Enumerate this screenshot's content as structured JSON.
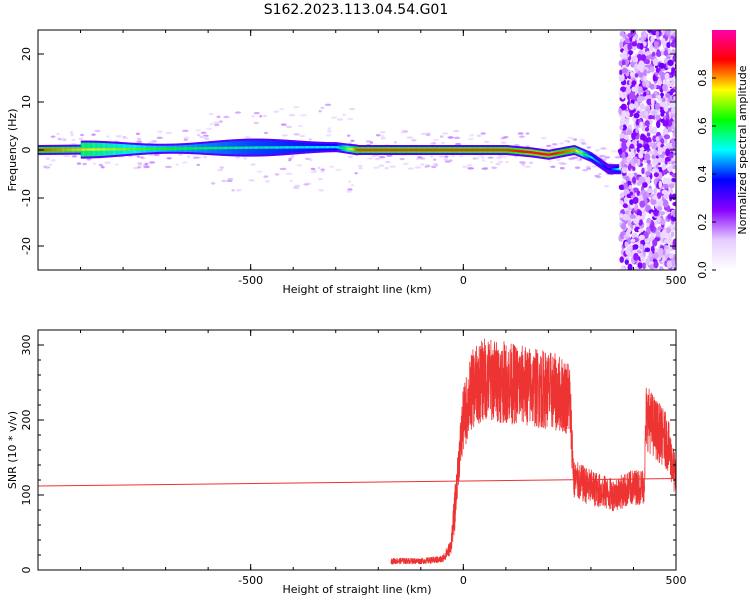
{
  "title": "S162.2023.113.04.54.G01",
  "chart_data": [
    {
      "type": "heatmap",
      "xlabel": "Height of straight line (km)",
      "ylabel": "Frequency (Hz)",
      "xlim": [
        -1000,
        500
      ],
      "ylim": [
        -25,
        25
      ],
      "xticks": [
        -500,
        0,
        500
      ],
      "yticks": [
        -20,
        -10,
        0,
        10,
        20
      ],
      "colorbar": {
        "label": "Normalized spectral amplitude",
        "range": [
          0,
          1
        ],
        "ticks": [
          "0.0",
          "0.2",
          "0.4",
          "0.6",
          "0.8"
        ],
        "colors": [
          "#ffffff",
          "#e6ccff",
          "#8800ff",
          "#0000ff",
          "#00ffff",
          "#00ff00",
          "#ffff00",
          "#ff0000",
          "#ff00aa"
        ]
      },
      "ridge": [
        {
          "x": -1000,
          "freq": 0.0,
          "amp": 0.85
        },
        {
          "x": -750,
          "freq": 0.2,
          "amp": 0.65
        },
        {
          "x": -500,
          "freq": 0.5,
          "amp": 0.55
        },
        {
          "x": -300,
          "freq": 0.6,
          "amp": 0.5
        },
        {
          "x": -250,
          "freq": 0.0,
          "amp": 0.85
        },
        {
          "x": 100,
          "freq": 0.0,
          "amp": 0.85
        },
        {
          "x": 160,
          "freq": -0.5,
          "amp": 0.9
        },
        {
          "x": 200,
          "freq": -1.0,
          "amp": 0.9
        },
        {
          "x": 260,
          "freq": 0.0,
          "amp": 0.8
        },
        {
          "x": 300,
          "freq": -1.5,
          "amp": 0.5
        },
        {
          "x": 340,
          "freq": -4.0,
          "amp": 0.35
        },
        {
          "x": 370,
          "freq": -4.0,
          "amp": 0.55
        }
      ],
      "noise_region": {
        "x_from": 370,
        "x_to": 500
      }
    },
    {
      "type": "line",
      "xlabel": "Height of straight line (km)",
      "ylabel": "SNR (10 * v/v)",
      "xlim": [
        -1000,
        500
      ],
      "ylim": [
        0,
        320
      ],
      "xticks": [
        -500,
        0,
        500
      ],
      "yticks": [
        0,
        100,
        200,
        300
      ],
      "color": "#ee3333",
      "series": [
        {
          "kind": "noisy",
          "x": [
            -170,
            -100,
            -50,
            -30,
            -20,
            -10,
            0,
            20,
            50,
            100,
            150,
            200,
            250,
            260,
            300,
            350,
            400,
            425,
            430,
            450,
            480,
            500
          ],
          "y": [
            12,
            12,
            14,
            30,
            80,
            150,
            200,
            240,
            255,
            250,
            245,
            240,
            230,
            120,
            110,
            100,
            110,
            112,
            205,
            190,
            170,
            120
          ]
        },
        {
          "kind": "trend",
          "x": [
            -1000,
            500
          ],
          "y": [
            112,
            122
          ]
        }
      ]
    }
  ]
}
